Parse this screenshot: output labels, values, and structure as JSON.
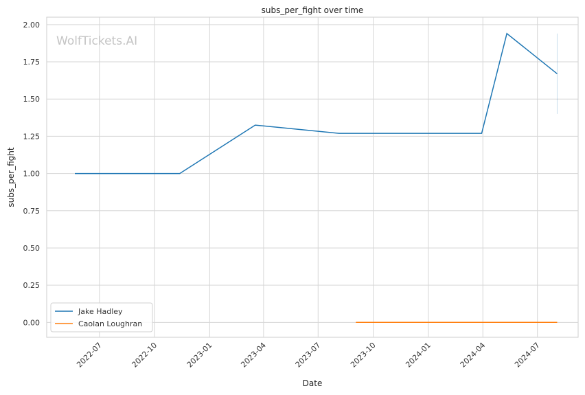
{
  "chart_data": {
    "type": "line",
    "title": "subs_per_fight over time",
    "xlabel": "Date",
    "ylabel": "subs_per_fight",
    "watermark": "WolfTickets.AI",
    "xlim": [
      "2022-04-04",
      "2024-09-07"
    ],
    "ylim": [
      -0.1,
      2.05
    ],
    "x_ticks": [
      "2022-07",
      "2022-10",
      "2023-01",
      "2023-04",
      "2023-07",
      "2023-10",
      "2024-01",
      "2024-04",
      "2024-07"
    ],
    "y_ticks": [
      0.0,
      0.25,
      0.5,
      0.75,
      1.0,
      1.25,
      1.5,
      1.75,
      2.0
    ],
    "y_tick_labels": [
      "0.00",
      "0.25",
      "0.50",
      "0.75",
      "1.00",
      "1.25",
      "1.50",
      "1.75",
      "2.00"
    ],
    "grid": true,
    "legend_position": "lower-left",
    "series": [
      {
        "name": "Jake Hadley",
        "color": "#1f77b4",
        "points": [
          {
            "x": "2022-05-21",
            "y": 1.0
          },
          {
            "x": "2022-11-12",
            "y": 1.0
          },
          {
            "x": "2023-03-18",
            "y": 1.325
          },
          {
            "x": "2023-08-05",
            "y": 1.27
          },
          {
            "x": "2024-03-30",
            "y": 1.27
          },
          {
            "x": "2024-05-11",
            "y": 1.94
          },
          {
            "x": "2024-08-03",
            "y": 1.67
          }
        ],
        "error_band": {
          "x": "2024-08-03",
          "low": 1.4,
          "high": 1.94
        }
      },
      {
        "name": "Caolan Loughran",
        "color": "#ff7f0e",
        "points": [
          {
            "x": "2023-09-02",
            "y": 0.0
          },
          {
            "x": "2024-08-03",
            "y": 0.0
          }
        ]
      }
    ]
  }
}
